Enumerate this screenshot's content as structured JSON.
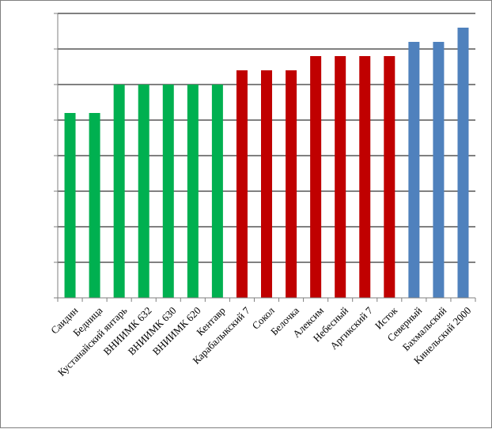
{
  "chart_data": {
    "type": "bar",
    "title": "",
    "xlabel": "",
    "ylabel": "",
    "ylim": [
      0,
      8
    ],
    "y_tick_count": 9,
    "y_tick_labels_visible": false,
    "grid": true,
    "legend": "none",
    "categories": [
      "Саидин",
      "Бедница",
      "Кустанайский янтарь",
      "ВНИИМК 632",
      "ВНИИМК 630",
      "ВНИИМК 620",
      "Кентавр",
      "Карабалыкский 7",
      "Сокол",
      "Белочка",
      "Алексим",
      "Небесный",
      "Аргикский 7",
      "Исток",
      "Северный",
      "Бахмальский",
      "Кинельский 2000"
    ],
    "values": [
      5.2,
      5.2,
      6.0,
      6.0,
      6.0,
      6.0,
      6.0,
      6.4,
      6.4,
      6.4,
      6.8,
      6.8,
      6.8,
      6.8,
      7.2,
      7.2,
      7.6
    ],
    "bar_colors": [
      "#00b050",
      "#00b050",
      "#00b050",
      "#00b050",
      "#00b050",
      "#00b050",
      "#00b050",
      "#c00000",
      "#c00000",
      "#c00000",
      "#c00000",
      "#c00000",
      "#c00000",
      "#c00000",
      "#4f81bd",
      "#4f81bd",
      "#4f81bd"
    ],
    "grid_color": "#000000",
    "axis_color": "#7f7f7f"
  }
}
